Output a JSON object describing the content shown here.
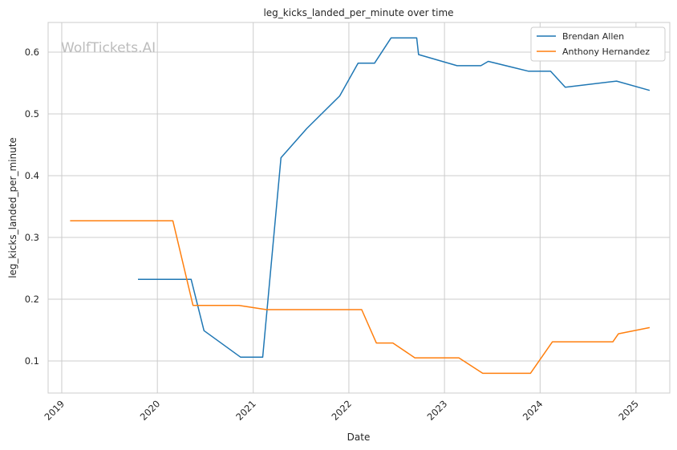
{
  "chart_data": {
    "type": "line",
    "title": "leg_kicks_landed_per_minute over time",
    "xlabel": "Date",
    "ylabel": "leg_kicks_landed_per_minute",
    "watermark": "WolfTickets.AI",
    "grid": true,
    "legend_position": "top-right",
    "xlim": [
      "2018-11-10",
      "2025-05-10"
    ],
    "ylim": [
      0.048,
      0.648
    ],
    "x_ticks": [
      "2019-01-01",
      "2020-01-01",
      "2021-01-01",
      "2022-01-01",
      "2023-01-01",
      "2024-01-01",
      "2025-01-01"
    ],
    "x_tick_labels": [
      "2019",
      "2020",
      "2021",
      "2022",
      "2023",
      "2024",
      "2025"
    ],
    "y_ticks": [
      0.1,
      0.2,
      0.3,
      0.4,
      0.5,
      0.6
    ],
    "y_tick_labels": [
      "0.1",
      "0.2",
      "0.3",
      "0.4",
      "0.5",
      "0.6"
    ],
    "series": [
      {
        "name": "Brendan Allen",
        "color": "#1f77b4",
        "points": [
          [
            "2019-10-19",
            0.232
          ],
          [
            "2020-05-09",
            0.232
          ],
          [
            "2020-06-27",
            0.149
          ],
          [
            "2020-11-14",
            0.106
          ],
          [
            "2021-02-06",
            0.106
          ],
          [
            "2021-04-17",
            0.429
          ],
          [
            "2021-07-24",
            0.476
          ],
          [
            "2021-11-27",
            0.529
          ],
          [
            "2022-02-05",
            0.582
          ],
          [
            "2022-04-09",
            0.582
          ],
          [
            "2022-06-11",
            0.623
          ],
          [
            "2022-09-17",
            0.623
          ],
          [
            "2022-09-24",
            0.596
          ],
          [
            "2023-02-18",
            0.578
          ],
          [
            "2023-05-20",
            0.578
          ],
          [
            "2023-06-17",
            0.585
          ],
          [
            "2023-11-18",
            0.569
          ],
          [
            "2024-02-10",
            0.569
          ],
          [
            "2024-04-06",
            0.543
          ],
          [
            "2024-10-19",
            0.553
          ],
          [
            "2025-02-22",
            0.538
          ]
        ]
      },
      {
        "name": "Anthony Hernandez",
        "color": "#ff7f0e",
        "points": [
          [
            "2019-02-02",
            0.327
          ],
          [
            "2020-02-29",
            0.327
          ],
          [
            "2020-05-16",
            0.19
          ],
          [
            "2020-11-07",
            0.19
          ],
          [
            "2021-02-20",
            0.183
          ],
          [
            "2022-02-19",
            0.183
          ],
          [
            "2022-04-16",
            0.129
          ],
          [
            "2022-06-18",
            0.129
          ],
          [
            "2022-09-10",
            0.105
          ],
          [
            "2023-02-25",
            0.105
          ],
          [
            "2023-05-27",
            0.08
          ],
          [
            "2023-11-25",
            0.08
          ],
          [
            "2024-02-17",
            0.131
          ],
          [
            "2024-10-05",
            0.131
          ],
          [
            "2024-10-26",
            0.144
          ],
          [
            "2025-02-22",
            0.154
          ]
        ]
      }
    ]
  }
}
